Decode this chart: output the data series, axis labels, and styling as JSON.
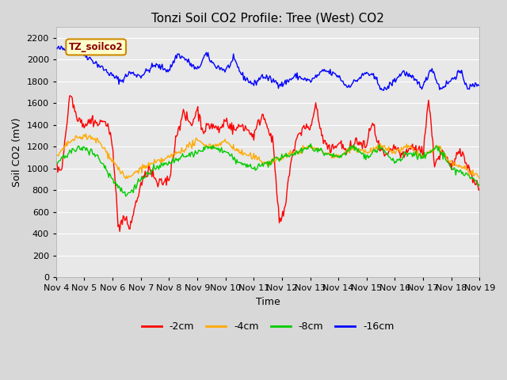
{
  "title": "Tonzi Soil CO2 Profile: Tree (West) CO2",
  "xlabel": "Time",
  "ylabel": "Soil CO2 (mV)",
  "legend_label": "TZ_soilco2",
  "series_labels": [
    "-2cm",
    "-4cm",
    "-8cm",
    "-16cm"
  ],
  "series_colors": [
    "#ff0000",
    "#ffaa00",
    "#00cc00",
    "#0000ff"
  ],
  "ylim": [
    0,
    2300
  ],
  "yticks": [
    0,
    200,
    400,
    600,
    800,
    1000,
    1200,
    1400,
    1600,
    1800,
    2000,
    2200
  ],
  "xtick_labels": [
    "Nov 4",
    "Nov 5",
    "Nov 6",
    "Nov 7",
    "Nov 8",
    "Nov 9",
    "Nov 10",
    "Nov 11",
    "Nov 12",
    "Nov 13",
    "Nov 14",
    "Nov 15",
    "Nov 16",
    "Nov 17",
    "Nov 18",
    "Nov 19"
  ],
  "bg_color": "#d8d8d8",
  "plot_bg_color": "#e8e8e8",
  "grid_color": "#ffffff",
  "title_fontsize": 11,
  "axis_fontsize": 9,
  "tick_fontsize": 8,
  "line_width": 1.0,
  "num_points": 500
}
